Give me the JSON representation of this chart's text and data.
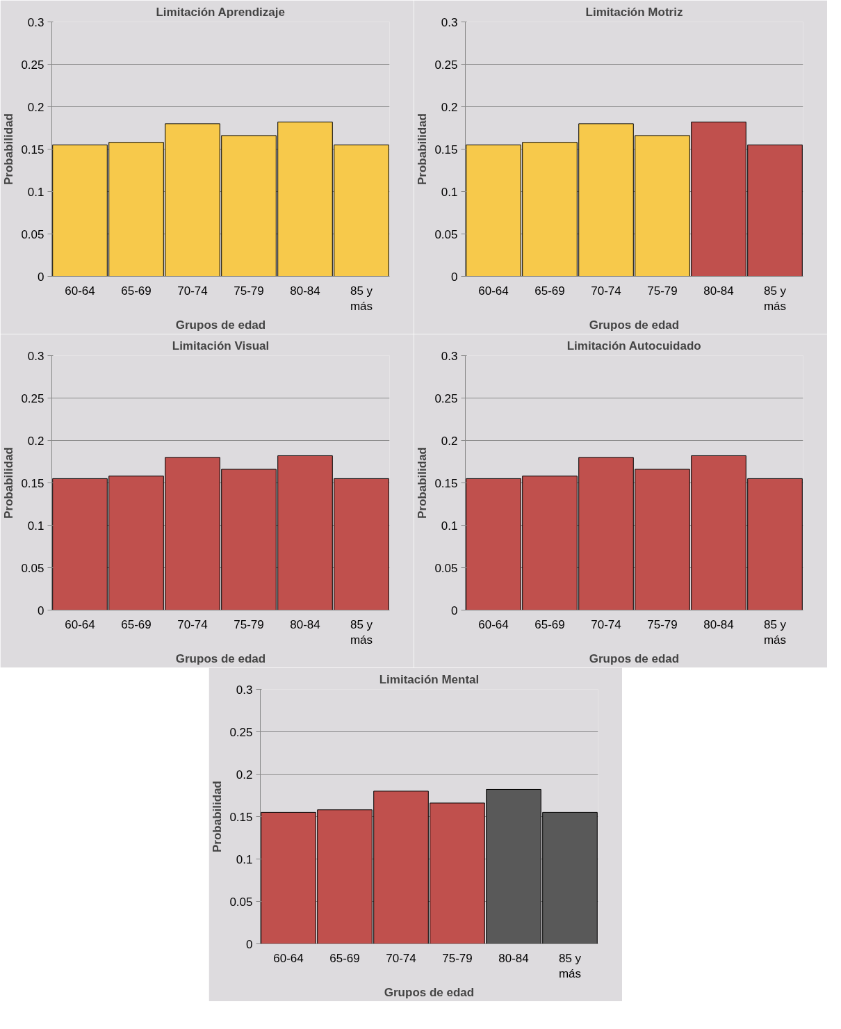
{
  "chart_data": [
    {
      "type": "bar",
      "title": "Limitación Aprendizaje",
      "xlabel": "Grupos de edad",
      "ylabel": "Probabilidad",
      "categories": [
        "60-64",
        "65-69",
        "70-74",
        "75-79",
        "80-84",
        "85 y más"
      ],
      "values": [
        0.155,
        0.158,
        0.18,
        0.166,
        0.182,
        0.155
      ],
      "colors": [
        "#f7c94b",
        "#f7c94b",
        "#f7c94b",
        "#f7c94b",
        "#f7c94b",
        "#f7c94b"
      ],
      "ylim": [
        0,
        0.3
      ],
      "yticks": [
        0,
        0.05,
        0.1,
        0.15,
        0.2,
        0.25,
        0.3
      ],
      "grid": "y"
    },
    {
      "type": "bar",
      "title": "Limitación Motriz",
      "xlabel": "Grupos de edad",
      "ylabel": "Probabilidad",
      "categories": [
        "60-64",
        "65-69",
        "70-74",
        "75-79",
        "80-84",
        "85 y más"
      ],
      "values": [
        0.155,
        0.158,
        0.18,
        0.166,
        0.182,
        0.155
      ],
      "colors": [
        "#f7c94b",
        "#f7c94b",
        "#f7c94b",
        "#f7c94b",
        "#c0504d",
        "#c0504d"
      ],
      "ylim": [
        0,
        0.3
      ],
      "yticks": [
        0,
        0.05,
        0.1,
        0.15,
        0.2,
        0.25,
        0.3
      ],
      "grid": "y"
    },
    {
      "type": "bar",
      "title": "Limitación Visual",
      "xlabel": "Grupos de edad",
      "ylabel": "Probabilidad",
      "categories": [
        "60-64",
        "65-69",
        "70-74",
        "75-79",
        "80-84",
        "85 y más"
      ],
      "values": [
        0.155,
        0.158,
        0.18,
        0.166,
        0.182,
        0.155
      ],
      "colors": [
        "#c0504d",
        "#c0504d",
        "#c0504d",
        "#c0504d",
        "#c0504d",
        "#c0504d"
      ],
      "ylim": [
        0,
        0.3
      ],
      "yticks": [
        0,
        0.05,
        0.1,
        0.15,
        0.2,
        0.25,
        0.3
      ],
      "grid": "y"
    },
    {
      "type": "bar",
      "title": "Limitación Autocuidado",
      "xlabel": "Grupos de edad",
      "ylabel": "Probabilidad",
      "categories": [
        "60-64",
        "65-69",
        "70-74",
        "75-79",
        "80-84",
        "85 y más"
      ],
      "values": [
        0.155,
        0.158,
        0.18,
        0.166,
        0.182,
        0.155
      ],
      "colors": [
        "#c0504d",
        "#c0504d",
        "#c0504d",
        "#c0504d",
        "#c0504d",
        "#c0504d"
      ],
      "ylim": [
        0,
        0.3
      ],
      "yticks": [
        0,
        0.05,
        0.1,
        0.15,
        0.2,
        0.25,
        0.3
      ],
      "grid": "y"
    },
    {
      "type": "bar",
      "title": "Limitación Mental",
      "xlabel": "Grupos de edad",
      "ylabel": "Probabilidad",
      "categories": [
        "60-64",
        "65-69",
        "70-74",
        "75-79",
        "80-84",
        "85 y más"
      ],
      "values": [
        0.155,
        0.158,
        0.18,
        0.166,
        0.182,
        0.155
      ],
      "colors": [
        "#c0504d",
        "#c0504d",
        "#c0504d",
        "#c0504d",
        "#595959",
        "#595959"
      ],
      "ylim": [
        0,
        0.3
      ],
      "yticks": [
        0,
        0.05,
        0.1,
        0.15,
        0.2,
        0.25,
        0.3
      ],
      "grid": "y"
    }
  ]
}
